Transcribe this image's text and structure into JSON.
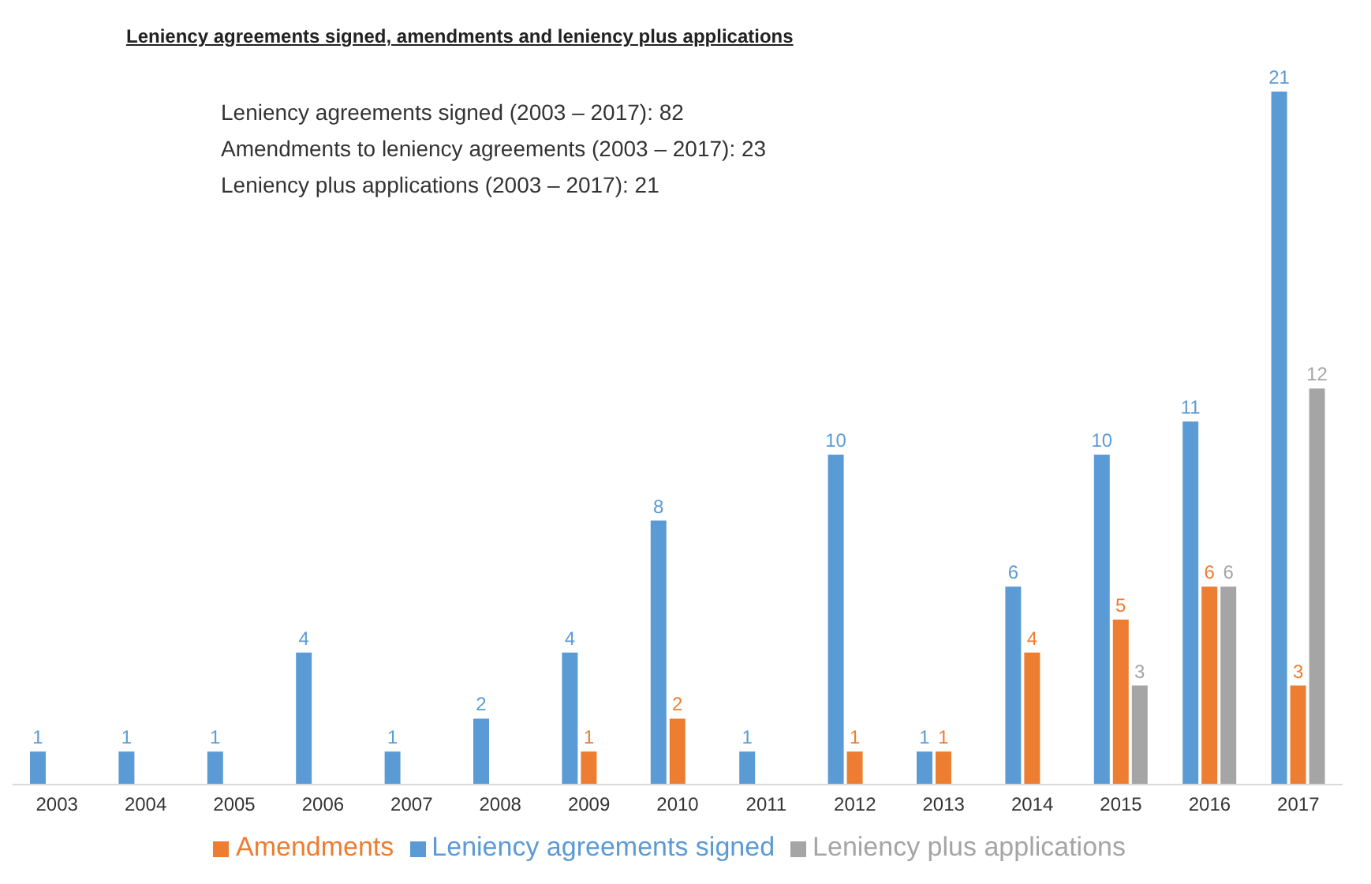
{
  "chart_data": {
    "type": "bar",
    "title": "Leniency agreements signed, amendments and leniency plus applications",
    "annotations": [
      "Leniency agreements signed (2003 – 2017): 82",
      "Amendments to leniency agreements (2003 – 2017): 23",
      "Leniency plus applications (2003 – 2017): 21"
    ],
    "categories": [
      "2003",
      "2004",
      "2005",
      "2006",
      "2007",
      "2008",
      "2009",
      "2010",
      "2011",
      "2012",
      "2013",
      "2014",
      "2015",
      "2016",
      "2017"
    ],
    "series": [
      {
        "name": "Leniency agreements signed",
        "color": "#5b9bd5",
        "values": [
          1,
          1,
          1,
          4,
          1,
          2,
          4,
          8,
          1,
          10,
          1,
          6,
          10,
          11,
          21
        ]
      },
      {
        "name": "Amendments",
        "color": "#ed7d31",
        "values": [
          null,
          null,
          null,
          null,
          null,
          null,
          1,
          2,
          null,
          1,
          1,
          4,
          5,
          6,
          3
        ]
      },
      {
        "name": "Leniency plus applications",
        "color": "#a5a5a5",
        "values": [
          null,
          null,
          null,
          null,
          null,
          null,
          null,
          null,
          null,
          null,
          null,
          null,
          3,
          6,
          12
        ]
      }
    ],
    "data_labels": true,
    "grid": false,
    "legend": "bottom"
  }
}
